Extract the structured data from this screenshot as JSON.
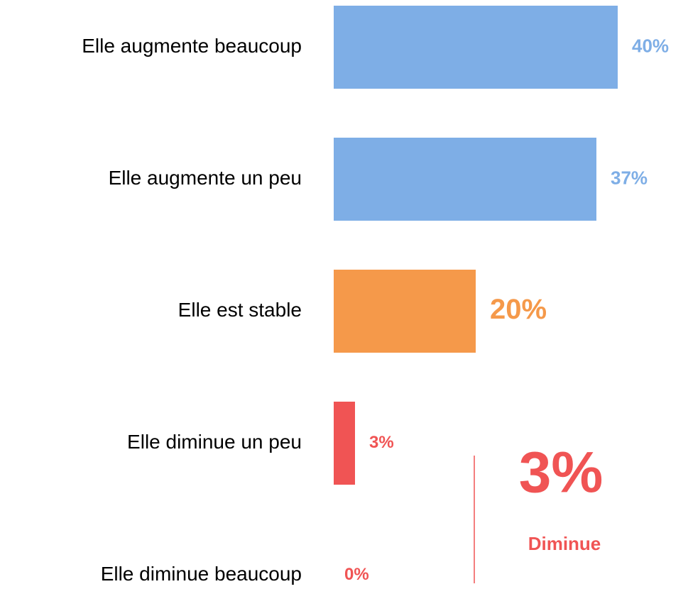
{
  "chart_data": {
    "type": "bar",
    "orientation": "horizontal",
    "categories": [
      "Elle augmente beaucoup",
      "Elle augmente un peu",
      "Elle est stable",
      "Elle diminue un peu",
      "Elle diminue beaucoup"
    ],
    "values": [
      40,
      37,
      20,
      3,
      0
    ],
    "value_labels": [
      "40%",
      "37%",
      "20%",
      "3%",
      "0%"
    ],
    "colors": [
      "#7eaee6",
      "#7eaee6",
      "#f5994a",
      "#f05454",
      "#f05454"
    ],
    "annotations": [
      "3%",
      "Diminue"
    ]
  }
}
